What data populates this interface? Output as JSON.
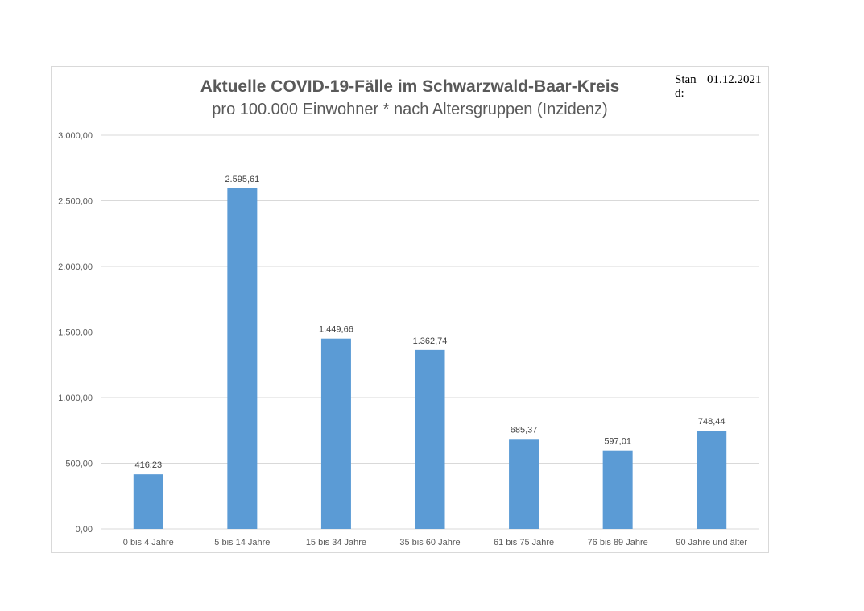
{
  "stand": {
    "label": "Stand:",
    "value": "01.12.2021"
  },
  "chart_data": {
    "type": "bar",
    "title": "Aktuelle COVID-19-Fälle im Schwarzwald-Baar-Kreis",
    "subtitle": "pro 100.000 Einwohner * nach Altersgruppen (Inzidenz)",
    "xlabel": "",
    "ylabel": "",
    "ylim": [
      0,
      3000
    ],
    "yticks": [
      0,
      500,
      1000,
      1500,
      2000,
      2500,
      3000
    ],
    "ytick_labels": [
      "0,00",
      "500,00",
      "1.000,00",
      "1.500,00",
      "2.000,00",
      "2.500,00",
      "3.000,00"
    ],
    "categories": [
      "0 bis 4 Jahre",
      "5 bis 14 Jahre",
      "15 bis 34 Jahre",
      "35 bis 60 Jahre",
      "61 bis 75 Jahre",
      "76 bis 89 Jahre",
      "90 Jahre und älter"
    ],
    "values": [
      416.23,
      2595.61,
      1449.66,
      1362.74,
      685.37,
      597.01,
      748.44
    ],
    "value_labels": [
      "416,23",
      "2.595,61",
      "1.449,66",
      "1.362,74",
      "685,37",
      "597,01",
      "748,44"
    ],
    "grid": true,
    "legend": "none",
    "bar_color": "#5b9bd5",
    "grid_color": "#d9d9d9"
  }
}
